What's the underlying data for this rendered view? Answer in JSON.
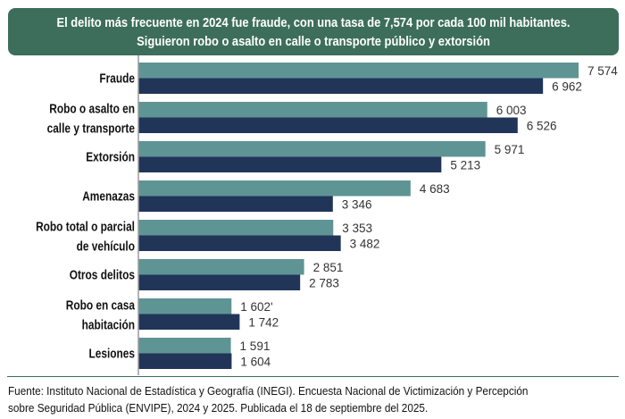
{
  "header": {
    "line1": "El delito más frecuente en 2024 fue fraude, con una tasa de 7,574 por cada 100 mil habitantes.",
    "line2": "Siguieron robo o asalto en calle o transporte público y extorsión"
  },
  "colors": {
    "header_bg": "#3d6e5c",
    "series_2024": "#5f9494",
    "series_2025": "#213559",
    "axis": "#9a9a9a"
  },
  "chart_data": {
    "type": "bar",
    "orientation": "horizontal",
    "title": "El delito más frecuente en 2024 fue fraude, con una tasa de 7,574 por cada 100 mil habitantes. Siguieron robo o asalto en calle o transporte público y extorsión",
    "xlabel": "",
    "ylabel": "",
    "xlim": [
      0,
      7574
    ],
    "grid": false,
    "legend": "none",
    "categories": [
      [
        "Fraude"
      ],
      [
        "Robo o asalto en",
        "calle y transporte"
      ],
      [
        "Extorsión"
      ],
      [
        "Amenazas"
      ],
      [
        "Robo total o parcial",
        "de vehículo"
      ],
      [
        "Otros delitos"
      ],
      [
        "Robo en casa",
        "habitación"
      ],
      [
        "Lesiones"
      ]
    ],
    "series": [
      {
        "name": "2024",
        "values": [
          7574,
          6003,
          5971,
          4683,
          3353,
          2851,
          1602,
          1591
        ],
        "labels": [
          "7 574",
          "6 003",
          "5 971",
          "4 683",
          "3 353",
          "2 851",
          "1 602'",
          "1 591"
        ]
      },
      {
        "name": "2025",
        "values": [
          6962,
          6526,
          5213,
          3346,
          3482,
          2783,
          1742,
          1604
        ],
        "labels": [
          "6 962",
          "6 526",
          "5 213",
          "3 346",
          "3 482",
          "2 783",
          "1 742",
          "1 604"
        ]
      }
    ]
  },
  "footer": {
    "source_line1": "Fuente: Instituto Nacional de Estadística y Geografía (INEGI). Encuesta Nacional de Victimización y Percepción",
    "source_line2": "sobre Seguridad Pública (ENVIPE), 2024 y 2025. Publicada el 18 de septiembre del 2025."
  }
}
